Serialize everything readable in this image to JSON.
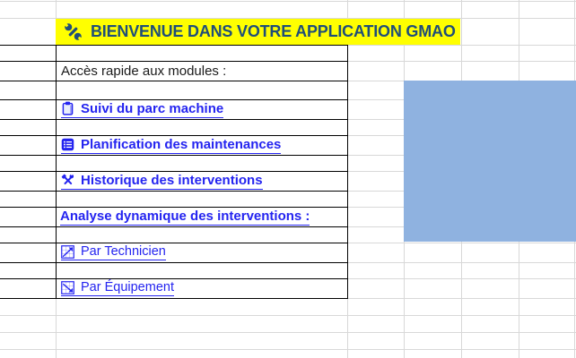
{
  "title_bar": {
    "label": "BIENVENUE DANS VOTRE APPLICATION GMAO",
    "icon": "wrench-icon"
  },
  "quick_access": {
    "heading": "Accès rapide aux modules :"
  },
  "module_links": [
    {
      "label": "Suivi du parc machine",
      "icon": "clipboard-icon"
    },
    {
      "label": "Planification des maintenances",
      "icon": "list-icon"
    },
    {
      "label": "Historique des interventions",
      "icon": "tools-icon"
    }
  ],
  "analysis_section": {
    "heading": "Analyse dynamique des interventions :",
    "links": [
      {
        "label": "Par Technicien",
        "icon": "chart-up-icon"
      },
      {
        "label": "Par Équipement",
        "icon": "chart-down-icon"
      }
    ]
  },
  "shape": {
    "description": "empty blue placeholder rectangle"
  },
  "colors": {
    "title_bg": "#FFFF00",
    "title_text": "#1F4E79",
    "hyperlink": "#2424F0",
    "cell_border": "#000000",
    "gridline": "#D8D8D8",
    "placeholder_shape": "#8FB2E0"
  }
}
